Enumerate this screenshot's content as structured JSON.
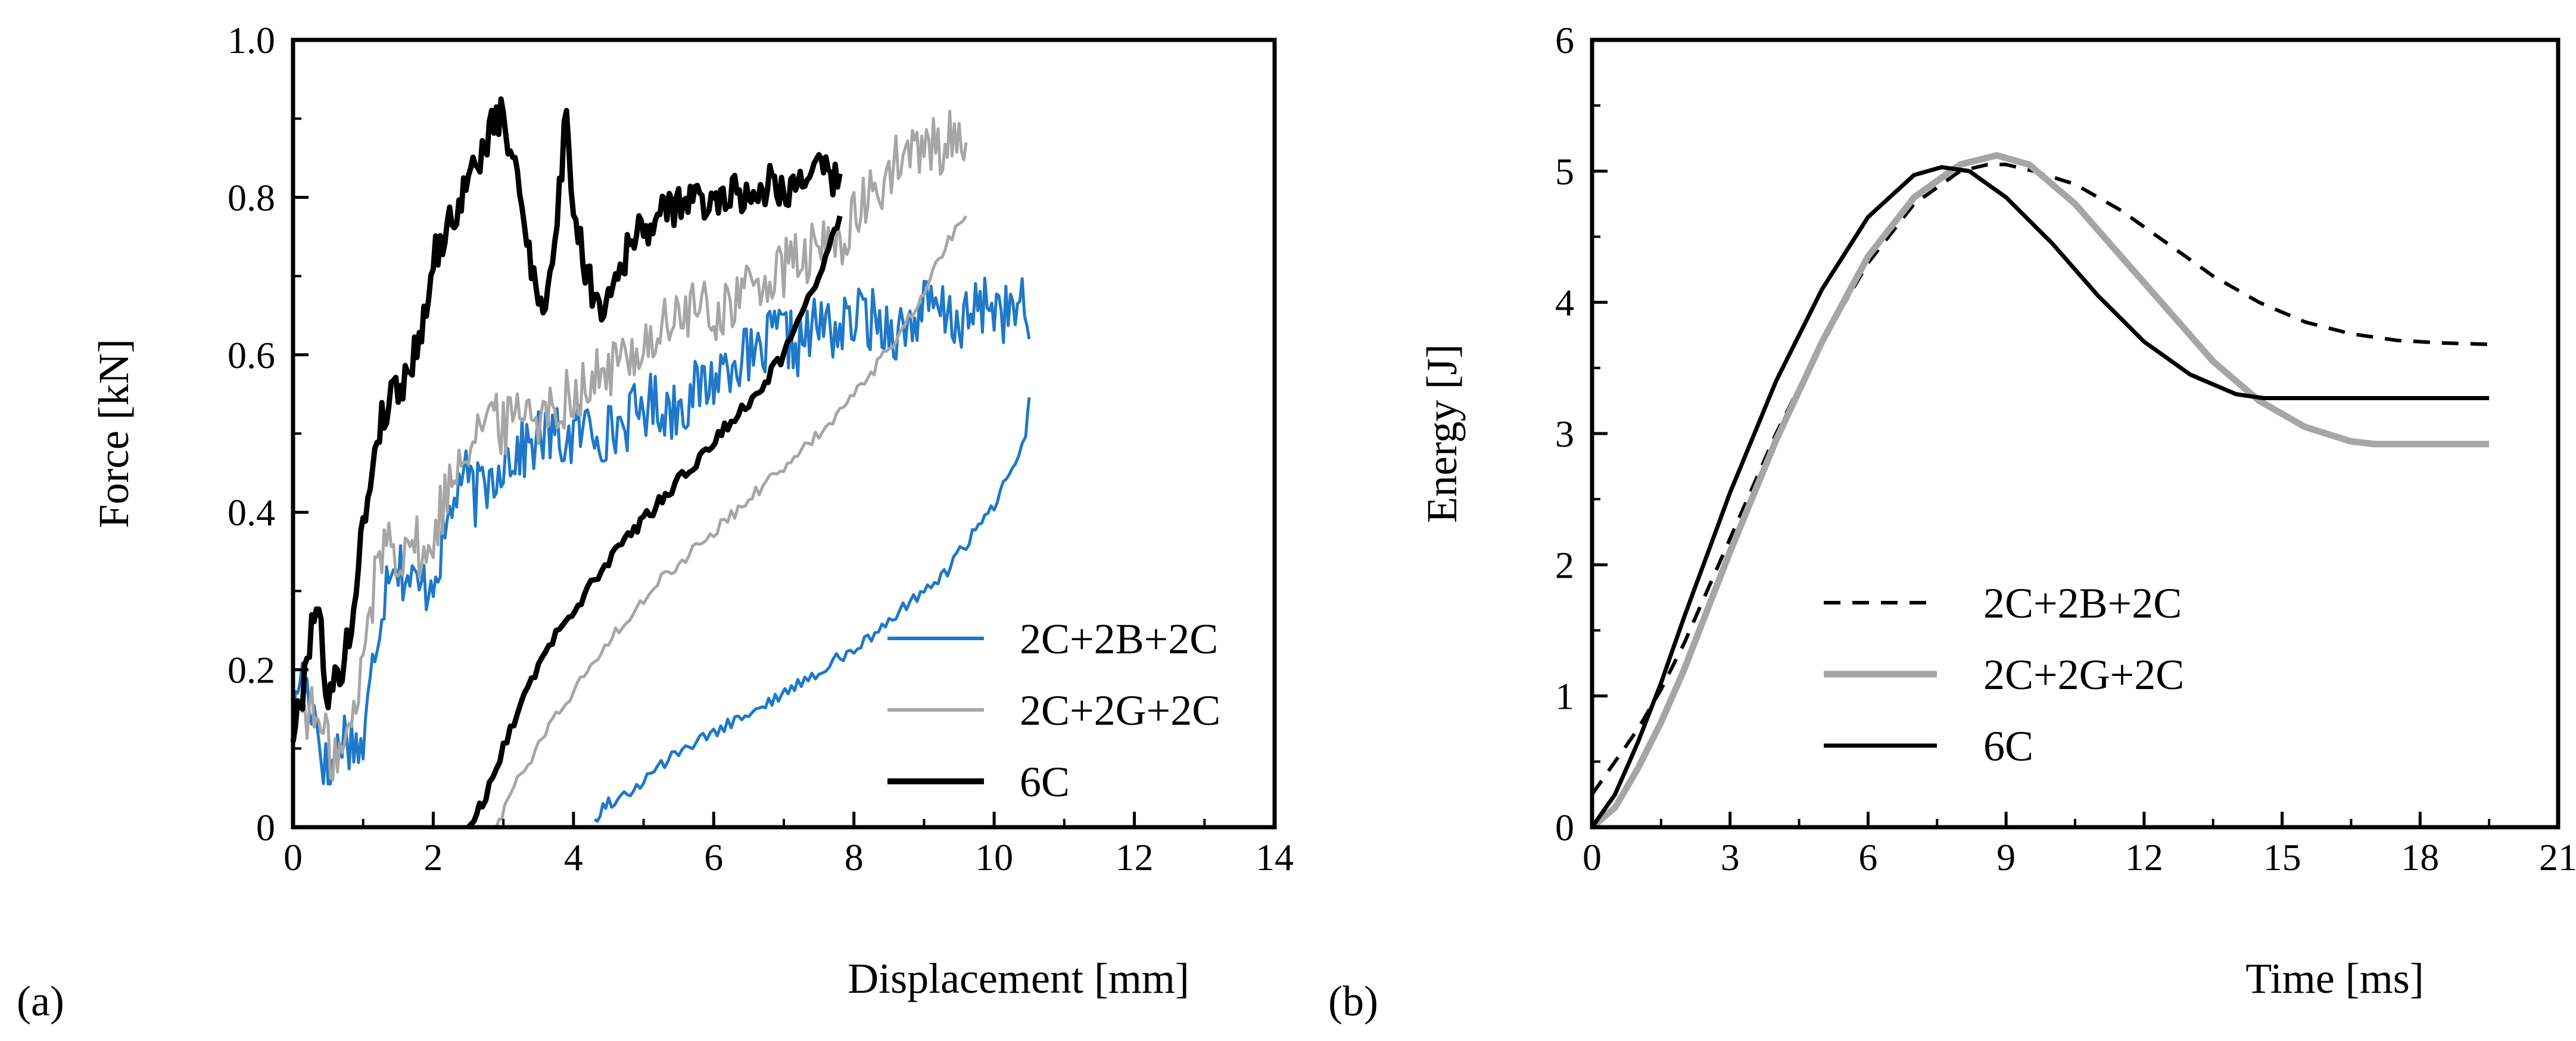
{
  "panels": [
    {
      "id": "a",
      "panel_label": "(a)",
      "legend": [
        {
          "label": "2C+2B+2C"
        },
        {
          "label": "2C+2G+2C"
        },
        {
          "label": "6C"
        }
      ]
    },
    {
      "id": "b",
      "panel_label": "(b)",
      "legend": [
        {
          "label": "2C+2B+2C"
        },
        {
          "label": "2C+2G+2C"
        },
        {
          "label": "6C"
        }
      ]
    }
  ],
  "colors": {
    "blue": "#1f78c8",
    "gray": "#a6a6a6",
    "black": "#000000"
  },
  "chart_data": [
    {
      "type": "line",
      "title": "",
      "xlabel": "Displacement [mm]",
      "ylabel": "Force [kN]",
      "xlim": [
        0,
        14
      ],
      "ylim": [
        0,
        1.0
      ],
      "xticks": [
        0,
        2,
        4,
        6,
        8,
        10,
        12,
        14
      ],
      "yticks": [
        0,
        0.2,
        0.4,
        0.6,
        0.8,
        1.0
      ],
      "xtick_labels": [
        "0",
        "2",
        "4",
        "6",
        "8",
        "10",
        "12",
        "14"
      ],
      "ytick_labels": [
        "0",
        "0.2",
        "0.4",
        "0.6",
        "0.8",
        "1.0"
      ],
      "legend_position": "bottom-right",
      "series": [
        {
          "name": "2C+2B+2C",
          "color": "#1f78c8",
          "style": "solid",
          "loading": {
            "x": [
              0,
              0.1,
              0.3,
              0.5,
              0.7,
              1.0,
              1.2,
              1.4,
              1.6,
              1.8,
              2.0,
              2.2,
              2.4,
              2.6,
              2.8,
              3.0,
              3.3,
              3.6,
              3.9,
              4.2,
              4.5,
              4.8,
              5.1,
              5.4,
              5.7,
              6.0,
              6.3,
              6.6,
              6.9,
              7.2,
              7.5,
              7.8,
              8.1,
              8.4,
              8.7,
              9.0,
              9.3,
              9.6,
              9.9,
              10.2,
              10.4,
              10.5
            ],
            "y": [
              0.12,
              0.2,
              0.15,
              0.06,
              0.12,
              0.1,
              0.25,
              0.35,
              0.32,
              0.3,
              0.32,
              0.38,
              0.45,
              0.42,
              0.44,
              0.47,
              0.48,
              0.5,
              0.49,
              0.51,
              0.5,
              0.52,
              0.54,
              0.53,
              0.55,
              0.57,
              0.6,
              0.59,
              0.63,
              0.61,
              0.64,
              0.63,
              0.65,
              0.64,
              0.63,
              0.66,
              0.65,
              0.64,
              0.67,
              0.65,
              0.66,
              0.62
            ]
          },
          "unloading": {
            "x": [
              10.5,
              10.45,
              10.3,
              10.0,
              9.6,
              9.2,
              8.7,
              8.2,
              7.7,
              7.2,
              6.6,
              6.0,
              5.4,
              4.9,
              4.5,
              4.3
            ],
            "y": [
              0.55,
              0.5,
              0.46,
              0.41,
              0.36,
              0.31,
              0.28,
              0.24,
              0.21,
              0.18,
              0.15,
              0.12,
              0.09,
              0.05,
              0.03,
              0.01
            ]
          }
        },
        {
          "name": "2C+2G+2C",
          "color": "#a6a6a6",
          "style": "solid",
          "loading": {
            "x": [
              0,
              0.1,
              0.3,
              0.5,
              0.7,
              0.9,
              1.1,
              1.3,
              1.5,
              1.7,
              1.9,
              2.1,
              2.4,
              2.7,
              3.0,
              3.3,
              3.6,
              3.9,
              4.2,
              4.5,
              4.8,
              5.1,
              5.4,
              5.7,
              6.0,
              6.3,
              6.6,
              6.9,
              7.2,
              7.5,
              7.8,
              8.1,
              8.4,
              8.7,
              9.0,
              9.3,
              9.5,
              9.6
            ],
            "y": [
              0.12,
              0.16,
              0.14,
              0.1,
              0.09,
              0.15,
              0.28,
              0.37,
              0.35,
              0.37,
              0.33,
              0.4,
              0.48,
              0.52,
              0.51,
              0.54,
              0.52,
              0.55,
              0.56,
              0.58,
              0.6,
              0.62,
              0.64,
              0.66,
              0.65,
              0.67,
              0.69,
              0.7,
              0.72,
              0.73,
              0.75,
              0.78,
              0.82,
              0.85,
              0.86,
              0.87,
              0.88,
              0.87
            ]
          },
          "unloading": {
            "x": [
              9.6,
              9.3,
              9.0,
              8.6,
              8.2,
              7.8,
              7.3,
              6.8,
              6.3,
              5.8,
              5.3,
              4.8,
              4.3,
              3.8,
              3.4,
              3.1,
              2.9
            ],
            "y": [
              0.78,
              0.74,
              0.68,
              0.62,
              0.57,
              0.53,
              0.48,
              0.44,
              0.4,
              0.36,
              0.32,
              0.27,
              0.21,
              0.15,
              0.09,
              0.04,
              0.0
            ]
          }
        },
        {
          "name": "6C",
          "color": "#000000",
          "style": "solid",
          "loading": {
            "x": [
              0,
              0.1,
              0.2,
              0.3,
              0.4,
              0.5,
              0.6,
              0.8,
              1.0,
              1.2,
              1.4,
              1.6,
              1.8,
              2.0,
              2.2,
              2.4,
              2.6,
              2.8,
              2.9,
              3.0,
              3.2,
              3.4,
              3.6,
              3.8,
              3.9,
              4.0,
              4.2,
              4.4,
              4.6,
              4.8,
              5.0,
              5.3,
              5.6,
              5.9,
              6.2,
              6.5,
              6.8,
              7.1,
              7.4,
              7.7,
              7.8
            ],
            "y": [
              0.12,
              0.15,
              0.22,
              0.28,
              0.25,
              0.16,
              0.18,
              0.24,
              0.38,
              0.5,
              0.55,
              0.57,
              0.62,
              0.72,
              0.76,
              0.8,
              0.84,
              0.88,
              0.9,
              0.9,
              0.82,
              0.72,
              0.65,
              0.8,
              0.92,
              0.78,
              0.7,
              0.66,
              0.7,
              0.74,
              0.76,
              0.78,
              0.8,
              0.79,
              0.81,
              0.8,
              0.82,
              0.81,
              0.84,
              0.82,
              0.83
            ]
          },
          "unloading": {
            "x": [
              7.8,
              7.6,
              7.3,
              7.0,
              6.6,
              6.2,
              5.8,
              5.4,
              5.0,
              4.6,
              4.2,
              3.8,
              3.4,
              3.0,
              2.7,
              2.5
            ],
            "y": [
              0.78,
              0.72,
              0.66,
              0.6,
              0.55,
              0.51,
              0.47,
              0.43,
              0.39,
              0.35,
              0.3,
              0.25,
              0.19,
              0.1,
              0.03,
              0.0
            ]
          }
        }
      ]
    },
    {
      "type": "line",
      "title": "",
      "xlabel": "Time [ms]",
      "ylabel": "Energy [J]",
      "xlim": [
        0,
        21
      ],
      "ylim": [
        0,
        6
      ],
      "xticks": [
        0,
        3,
        6,
        9,
        12,
        15,
        18,
        21
      ],
      "yticks": [
        0,
        1,
        2,
        3,
        4,
        5,
        6
      ],
      "xtick_labels": [
        "0",
        "3",
        "6",
        "9",
        "12",
        "15",
        "18",
        "21"
      ],
      "ytick_labels": [
        "0",
        "1",
        "2",
        "3",
        "4",
        "5",
        "6"
      ],
      "legend_position": "bottom-center",
      "series": [
        {
          "name": "2C+2B+2C",
          "color": "#000000",
          "style": "dashed",
          "x": [
            0,
            0.5,
            1.0,
            1.5,
            2.0,
            3.0,
            4.0,
            5.0,
            6.0,
            7.0,
            8.0,
            8.6,
            9.0,
            9.6,
            10.5,
            11.5,
            12.5,
            13.5,
            14.5,
            15.5,
            16.5,
            17.5,
            18.5,
            19.5
          ],
          "y": [
            0.25,
            0.5,
            0.75,
            1.05,
            1.4,
            2.2,
            3.0,
            3.7,
            4.3,
            4.75,
            5.0,
            5.05,
            5.05,
            5.0,
            4.9,
            4.7,
            4.45,
            4.2,
            4.0,
            3.85,
            3.76,
            3.71,
            3.69,
            3.68
          ]
        },
        {
          "name": "2C+2G+2C",
          "color": "#a6a6a6",
          "style": "solid",
          "x": [
            0,
            0.5,
            1.0,
            1.5,
            2.0,
            3.0,
            4.0,
            5.0,
            6.0,
            7.0,
            8.0,
            8.8,
            9.5,
            10.5,
            11.5,
            12.5,
            13.5,
            14.5,
            15.5,
            16.5,
            17.0,
            17.5,
            18.5,
            19.5
          ],
          "y": [
            0.0,
            0.15,
            0.45,
            0.8,
            1.2,
            2.1,
            2.95,
            3.7,
            4.35,
            4.8,
            5.05,
            5.12,
            5.05,
            4.75,
            4.35,
            3.95,
            3.55,
            3.25,
            3.05,
            2.94,
            2.92,
            2.92,
            2.92,
            2.92
          ]
        },
        {
          "name": "6C",
          "color": "#000000",
          "style": "solid",
          "x": [
            0,
            0.5,
            1.0,
            1.5,
            2.0,
            3.0,
            4.0,
            5.0,
            6.0,
            7.0,
            7.6,
            8.2,
            9.0,
            10.0,
            11.0,
            12.0,
            13.0,
            14.0,
            14.6,
            15.5,
            17.0,
            18.5,
            19.5
          ],
          "y": [
            0.0,
            0.25,
            0.65,
            1.1,
            1.6,
            2.55,
            3.4,
            4.1,
            4.65,
            4.97,
            5.03,
            5.0,
            4.8,
            4.45,
            4.05,
            3.7,
            3.45,
            3.3,
            3.27,
            3.27,
            3.27,
            3.27,
            3.27
          ]
        }
      ]
    }
  ]
}
